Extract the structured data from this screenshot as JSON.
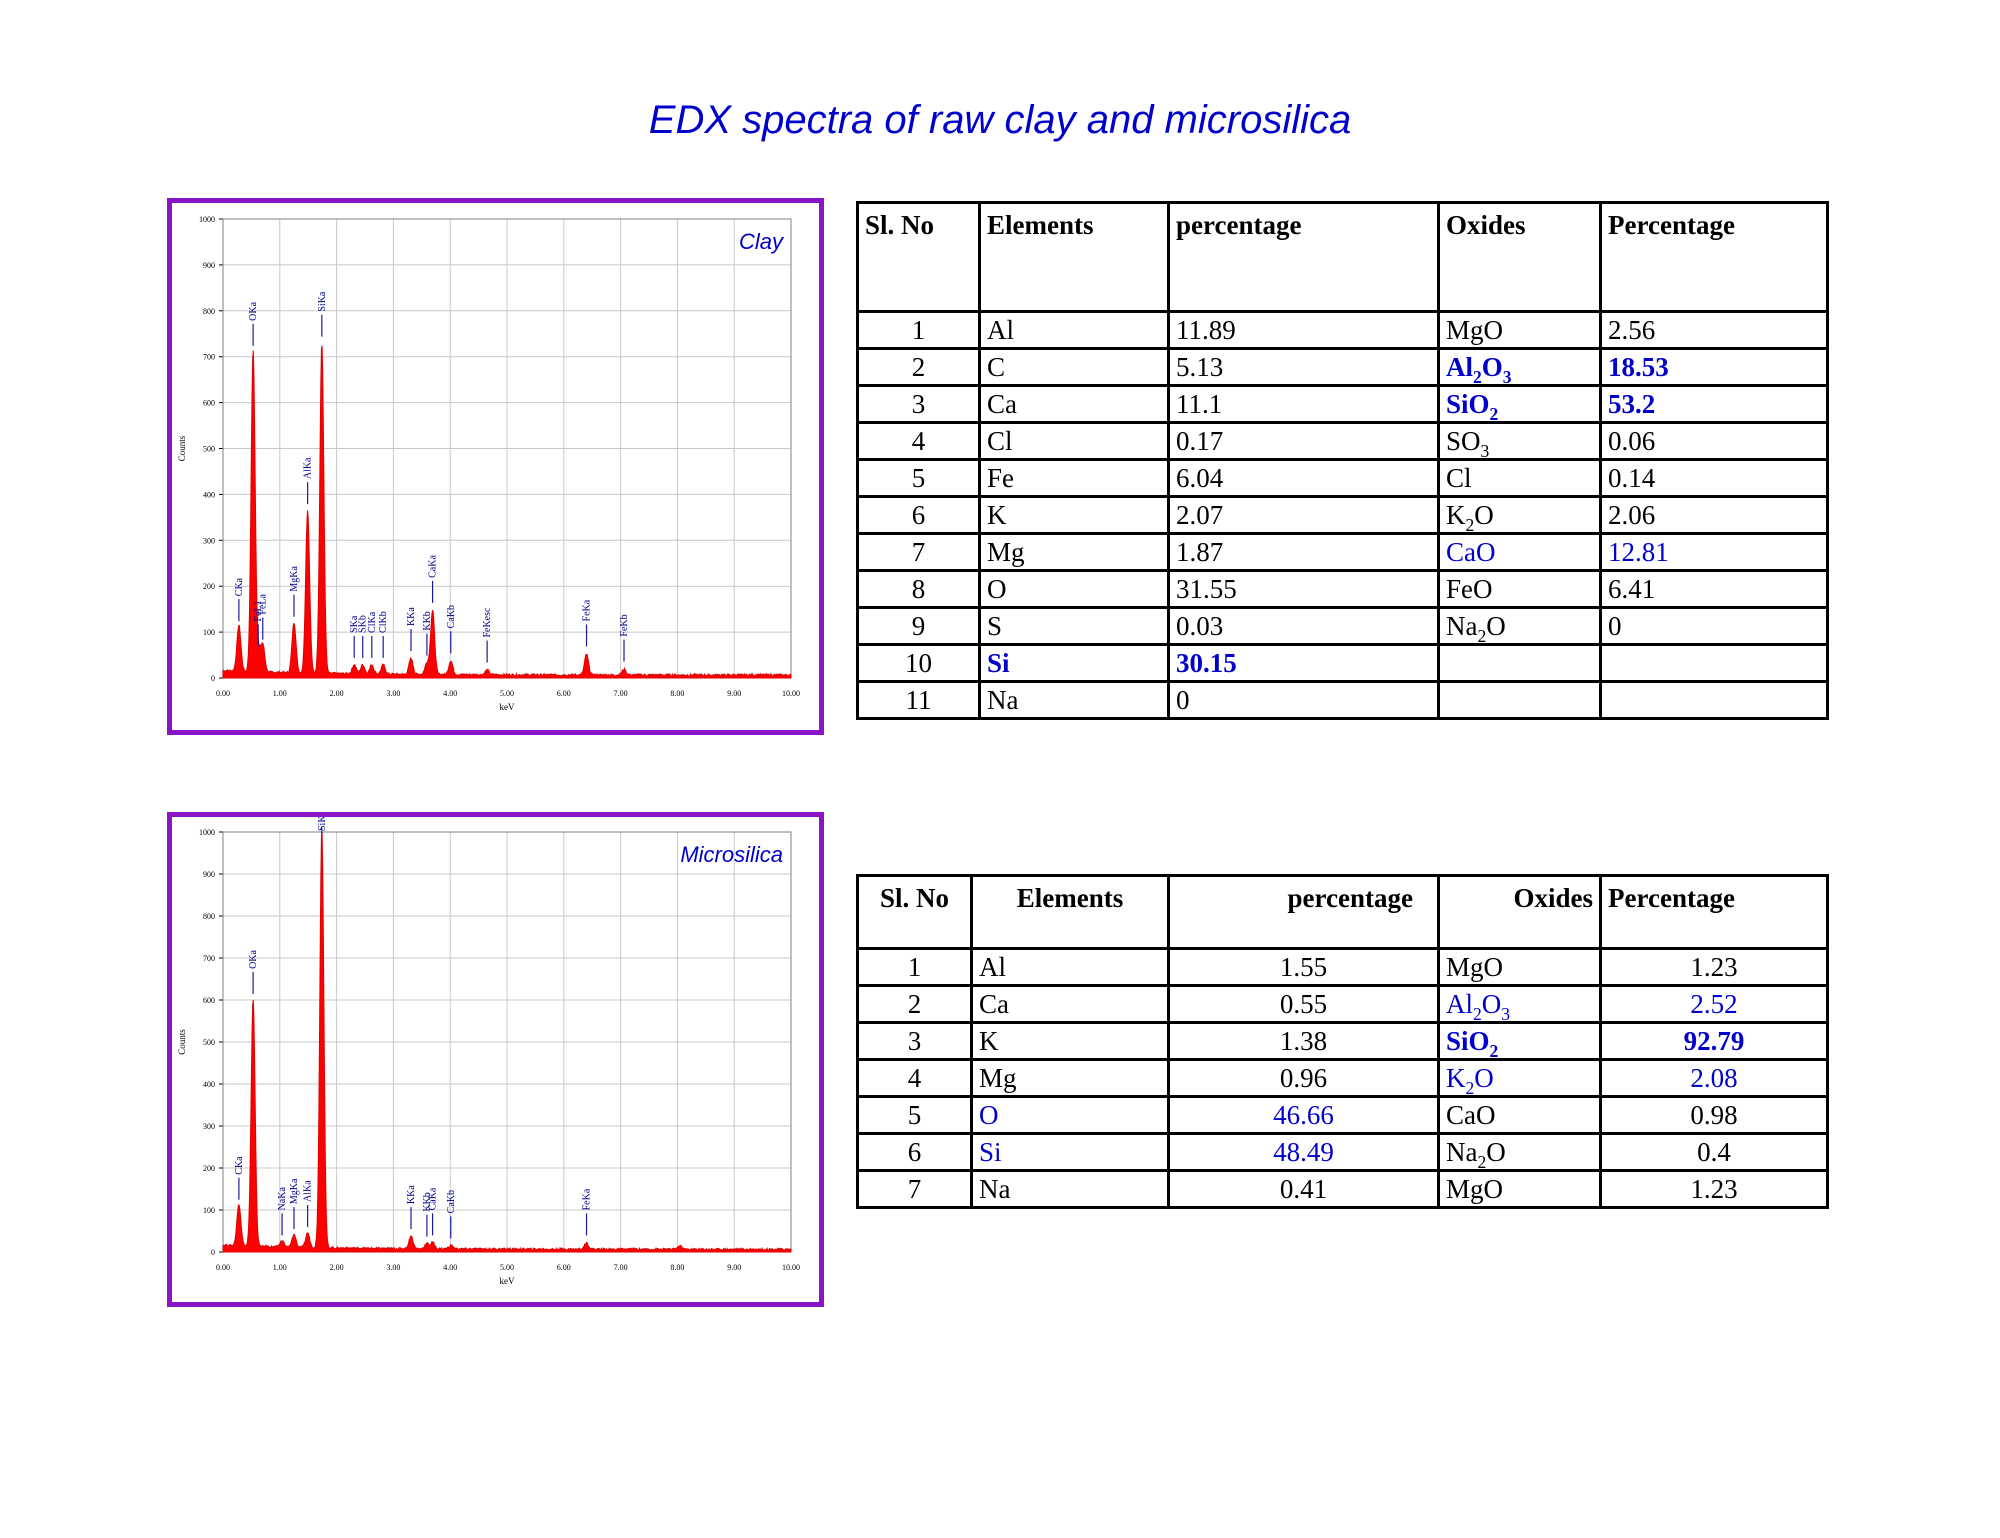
{
  "title": "EDX spectra of  raw clay and microsilica",
  "chart_data": [
    {
      "type": "line",
      "sample": "Clay",
      "xlabel": "keV",
      "ylabel": "Counts",
      "xlim": [
        0,
        10
      ],
      "ylim": [
        0,
        1000
      ],
      "grid": true,
      "x_ticks": [
        "0.00",
        "1.00",
        "2.00",
        "3.00",
        "4.00",
        "5.00",
        "6.00",
        "7.00",
        "8.00",
        "9.00",
        "10.00"
      ],
      "y_ticks": [
        "0",
        "100",
        "200",
        "300",
        "400",
        "500",
        "600",
        "700",
        "800",
        "900",
        "1000"
      ],
      "peaks": [
        {
          "label": "CKa",
          "x": 0.28,
          "y": 100
        },
        {
          "label": "OKa",
          "x": 0.53,
          "y": 700
        },
        {
          "label": "FeL1",
          "x": 0.62,
          "y": 45
        },
        {
          "label": "FeLa",
          "x": 0.7,
          "y": 60
        },
        {
          "label": "MgKa",
          "x": 1.25,
          "y": 110
        },
        {
          "label": "AlKa",
          "x": 1.49,
          "y": 355
        },
        {
          "label": "SiKa",
          "x": 1.74,
          "y": 720
        },
        {
          "label": "SKa",
          "x": 2.31,
          "y": 20
        },
        {
          "label": "SKb",
          "x": 2.46,
          "y": 20
        },
        {
          "label": "ClKa",
          "x": 2.62,
          "y": 20
        },
        {
          "label": "ClKb",
          "x": 2.82,
          "y": 20
        },
        {
          "label": "KKa",
          "x": 3.31,
          "y": 35
        },
        {
          "label": "KKb",
          "x": 3.59,
          "y": 25
        },
        {
          "label": "CaKa",
          "x": 3.69,
          "y": 140
        },
        {
          "label": "CaKb",
          "x": 4.01,
          "y": 30
        },
        {
          "label": "FeKesc",
          "x": 4.65,
          "y": 10
        },
        {
          "label": "FeKa",
          "x": 6.4,
          "y": 45
        },
        {
          "label": "FeKb",
          "x": 7.06,
          "y": 12
        }
      ]
    },
    {
      "type": "line",
      "sample": "Microsilica",
      "xlabel": "keV",
      "ylabel": "Counts",
      "xlim": [
        0,
        10
      ],
      "ylim": [
        0,
        1000
      ],
      "grid": true,
      "x_ticks": [
        "0.00",
        "1.00",
        "2.00",
        "3.00",
        "4.00",
        "5.00",
        "6.00",
        "7.00",
        "8.00",
        "9.00",
        "10.00"
      ],
      "y_ticks": [
        "0",
        "100",
        "200",
        "300",
        "400",
        "500",
        "600",
        "700",
        "800",
        "900",
        "1000"
      ],
      "peaks": [
        {
          "label": "CKa",
          "x": 0.28,
          "y": 100
        },
        {
          "label": "OKa",
          "x": 0.53,
          "y": 590
        },
        {
          "label": "NaKa",
          "x": 1.04,
          "y": 15
        },
        {
          "label": "MgKa",
          "x": 1.25,
          "y": 30
        },
        {
          "label": "AlKa",
          "x": 1.49,
          "y": 35
        },
        {
          "label": "SiKa",
          "x": 1.74,
          "y": 1000
        },
        {
          "label": "KKa",
          "x": 3.31,
          "y": 30
        },
        {
          "label": "KKb",
          "x": 3.59,
          "y": 12
        },
        {
          "label": "CaKa",
          "x": 3.69,
          "y": 15
        },
        {
          "label": "CaKb",
          "x": 4.01,
          "y": 8
        },
        {
          "label": "FeKa",
          "x": 6.4,
          "y": 15
        },
        {
          "label": "",
          "x": 8.04,
          "y": 8
        }
      ]
    }
  ],
  "tables": [
    {
      "headers": [
        "Sl. No",
        "Elements",
        "percentage",
        "Oxides",
        "Percentage"
      ],
      "rows": [
        {
          "no": "1",
          "el": "Al",
          "pct": "11.89",
          "ox": [
            "MgO"
          ],
          "opct": "2.56"
        },
        {
          "no": "2",
          "el": "C",
          "pct": "5.13",
          "ox": [
            "Al",
            "2",
            "O",
            "3"
          ],
          "opct": "18.53",
          "ox_style": "blue bold",
          "opct_style": "blue bold"
        },
        {
          "no": "3",
          "el": "Ca",
          "pct": "11.1",
          "ox": [
            "SiO",
            "2"
          ],
          "opct": "53.2",
          "ox_style": "blue bold",
          "opct_style": "blue bold"
        },
        {
          "no": "4",
          "el": "Cl",
          "pct": "0.17",
          "ox": [
            "SO",
            "3"
          ],
          "opct": "0.06"
        },
        {
          "no": "5",
          "el": "Fe",
          "pct": "6.04",
          "ox": [
            "Cl"
          ],
          "opct": "0.14"
        },
        {
          "no": "6",
          "el": "K",
          "pct": "2.07",
          "ox": [
            "K",
            "2",
            "O"
          ],
          "opct": "2.06"
        },
        {
          "no": "7",
          "el": "Mg",
          "pct": "1.87",
          "ox": [
            "CaO"
          ],
          "opct": "12.81",
          "ox_style": "blue",
          "opct_style": "blue"
        },
        {
          "no": "8",
          "el": "O",
          "pct": "31.55",
          "ox": [
            "FeO"
          ],
          "opct": "6.41"
        },
        {
          "no": "9",
          "el": "S",
          "pct": "0.03",
          "ox": [
            "Na",
            "2",
            "O"
          ],
          "opct": "0"
        },
        {
          "no": "10",
          "el": "Si",
          "pct": "30.15",
          "ox": [],
          "opct": "",
          "el_style": "blue bold",
          "pct_style": "blue bold"
        },
        {
          "no": "11",
          "el": "Na",
          "pct": "0",
          "ox": [],
          "opct": ""
        }
      ]
    },
    {
      "headers": [
        "Sl. No",
        "Elements",
        "percentage",
        "Oxides",
        "Percentage"
      ],
      "rows": [
        {
          "no": "1",
          "el": "Al",
          "pct": "1.55",
          "ox": [
            "MgO"
          ],
          "opct": "1.23"
        },
        {
          "no": "2",
          "el": "Ca",
          "pct": "0.55",
          "ox": [
            "Al",
            "2",
            "O",
            "3"
          ],
          "opct": "2.52",
          "ox_style": "blue",
          "opct_style": "blue"
        },
        {
          "no": "3",
          "el": "K",
          "pct": "1.38",
          "ox": [
            "SiO",
            "2"
          ],
          "opct": "92.79",
          "ox_style": "blue bold",
          "opct_style": "blue bold"
        },
        {
          "no": "4",
          "el": "Mg",
          "pct": "0.96",
          "ox": [
            "K",
            "2",
            "O"
          ],
          "opct": "2.08",
          "ox_style": "blue",
          "opct_style": "blue"
        },
        {
          "no": "5",
          "el": "O",
          "pct": "46.66",
          "ox": [
            "CaO"
          ],
          "opct": "0.98",
          "el_style": "blue",
          "pct_style": "blue"
        },
        {
          "no": "6",
          "el": "Si",
          "pct": "48.49",
          "ox": [
            "Na",
            "2",
            "O"
          ],
          "opct": "0.4",
          "el_style": "blue",
          "pct_style": "blue"
        },
        {
          "no": "7",
          "el": "Na",
          "pct": "0.41",
          "ox": [
            "MgO"
          ],
          "opct": "1.23"
        }
      ]
    }
  ]
}
